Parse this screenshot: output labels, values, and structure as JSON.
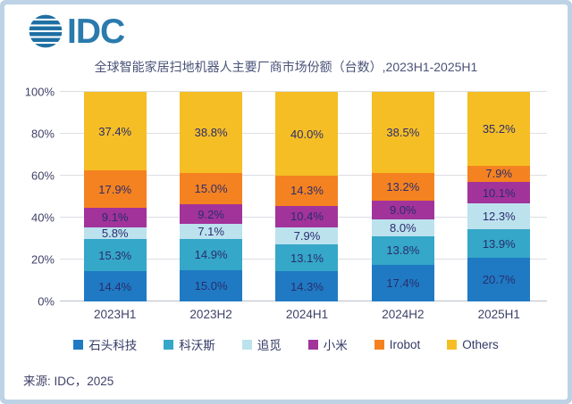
{
  "logo": {
    "brand": "IDC"
  },
  "title": "全球智能家居扫地机器人主要厂商市场份额（台数）,2023H1-2025H1",
  "source": "来源: IDC，2025",
  "chart_data": {
    "type": "bar",
    "stacked": true,
    "percent_stacked": true,
    "title": "全球智能家居扫地机器人主要厂商市场份额（台数）,2023H1-2025H1",
    "categories": [
      "2023H1",
      "2023H2",
      "2024H1",
      "2024H2",
      "2025H1"
    ],
    "series": [
      {
        "name": "石头科技",
        "color": "#1f7ac3",
        "values": [
          14.4,
          15.0,
          14.3,
          17.4,
          20.7
        ]
      },
      {
        "name": "科沃斯",
        "color": "#35a7c8",
        "values": [
          15.3,
          14.9,
          13.1,
          13.8,
          13.9
        ]
      },
      {
        "name": "追觅",
        "color": "#bce2ee",
        "values": [
          5.8,
          7.1,
          7.9,
          8.0,
          12.3
        ]
      },
      {
        "name": "小米",
        "color": "#a2339b",
        "values": [
          9.1,
          9.2,
          10.4,
          9.0,
          10.1
        ]
      },
      {
        "name": "Irobot",
        "color": "#f58220",
        "values": [
          17.9,
          15.0,
          14.3,
          13.2,
          7.9
        ]
      },
      {
        "name": "Others",
        "color": "#f5be25",
        "values": [
          37.4,
          38.8,
          40.0,
          38.5,
          35.2
        ]
      }
    ],
    "value_suffix": "%",
    "y_ticks": [
      "0%",
      "20%",
      "40%",
      "60%",
      "80%",
      "100%"
    ],
    "ylim": [
      0,
      100
    ],
    "grid": true,
    "legend_position": "bottom"
  }
}
